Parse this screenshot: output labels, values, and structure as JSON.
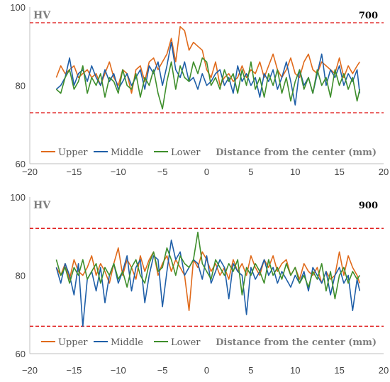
{
  "colors": {
    "upper": "#E06A1B",
    "middle": "#1F5FA8",
    "lower": "#3E8E2B",
    "limit": "#E02020",
    "axis": "#BFBFBF"
  },
  "chart_data": [
    {
      "type": "line",
      "title": "700",
      "ylabel": "HV",
      "xlabel": "Distance from the center (mm)",
      "xlim": [
        -20,
        20
      ],
      "ylim": [
        60,
        100
      ],
      "xticks": [
        "−20",
        "−15",
        "−10",
        "−5",
        "0",
        "5",
        "10",
        "15",
        "20"
      ],
      "yticks": [
        "60",
        "80",
        "100"
      ],
      "limits": [
        96,
        73
      ],
      "legend_position": "bottom-left",
      "series": [
        {
          "name": "Upper",
          "x": [
            -17.0,
            -16.5,
            -16.0,
            -15.5,
            -15.0,
            -14.5,
            -14.0,
            -13.5,
            -13.0,
            -12.5,
            -12.0,
            -11.5,
            -11.0,
            -10.5,
            -10.0,
            -9.5,
            -9.0,
            -8.5,
            -8.0,
            -7.5,
            -7.0,
            -6.5,
            -6.0,
            -5.5,
            -5.0,
            -4.5,
            -4.0,
            -3.5,
            -3.0,
            -2.5,
            -2.0,
            -1.5,
            -1.0,
            -0.5,
            0.0,
            0.5,
            1.0,
            1.5,
            2.0,
            2.5,
            3.0,
            3.5,
            4.0,
            4.5,
            5.0,
            5.5,
            6.0,
            6.5,
            7.0,
            7.5,
            8.0,
            8.5,
            9.0,
            9.5,
            10.0,
            10.5,
            11.0,
            11.5,
            12.0,
            12.5,
            13.0,
            13.5,
            14.0,
            14.5,
            15.0,
            15.5,
            16.0,
            16.5,
            17.0,
            17.3
          ],
          "values": [
            82,
            85,
            83,
            84,
            85,
            82,
            83,
            84,
            82,
            83,
            80,
            83,
            86,
            82,
            80,
            84,
            83,
            78,
            84,
            85,
            81,
            86,
            87,
            84,
            86,
            88,
            92,
            86,
            95,
            94,
            89,
            91,
            90,
            89,
            84,
            82,
            86,
            80,
            82,
            83,
            81,
            82,
            85,
            82,
            84,
            83,
            86,
            82,
            85,
            88,
            84,
            82,
            84,
            87,
            83,
            82,
            86,
            88,
            84,
            83,
            86,
            85,
            84,
            83,
            87,
            82,
            85,
            83,
            85,
            86
          ]
        },
        {
          "name": "Middle",
          "x": [
            -17.0,
            -16.5,
            -16.0,
            -15.5,
            -15.0,
            -14.5,
            -14.0,
            -13.5,
            -13.0,
            -12.5,
            -12.0,
            -11.5,
            -11.0,
            -10.5,
            -10.0,
            -9.5,
            -9.0,
            -8.5,
            -8.0,
            -7.5,
            -7.0,
            -6.5,
            -6.0,
            -5.5,
            -5.0,
            -4.5,
            -4.0,
            -3.5,
            -3.0,
            -2.5,
            -2.0,
            -1.5,
            -1.0,
            -0.5,
            0.0,
            0.5,
            1.0,
            1.5,
            2.0,
            2.5,
            3.0,
            3.5,
            4.0,
            4.5,
            5.0,
            5.5,
            6.0,
            6.5,
            7.0,
            7.5,
            8.0,
            8.5,
            9.0,
            9.5,
            10.0,
            10.5,
            11.0,
            11.5,
            12.0,
            12.5,
            13.0,
            13.5,
            14.0,
            14.5,
            15.0,
            15.5,
            16.0,
            16.5,
            17.0,
            17.3
          ],
          "values": [
            79,
            80,
            82,
            87,
            80,
            83,
            84,
            81,
            85,
            82,
            80,
            84,
            81,
            83,
            79,
            81,
            83,
            80,
            82,
            84,
            79,
            85,
            83,
            86,
            80,
            85,
            91,
            84,
            82,
            86,
            81,
            82,
            79,
            83,
            80,
            81,
            83,
            84,
            80,
            82,
            78,
            85,
            81,
            83,
            80,
            82,
            77,
            83,
            81,
            84,
            79,
            82,
            86,
            81,
            75,
            84,
            80,
            82,
            78,
            83,
            88,
            80,
            84,
            82,
            85,
            80,
            83,
            81,
            84,
            78
          ]
        },
        {
          "name": "Lower",
          "x": [
            -17.0,
            -16.5,
            -16.0,
            -15.5,
            -15.0,
            -14.5,
            -14.0,
            -13.5,
            -13.0,
            -12.5,
            -12.0,
            -11.5,
            -11.0,
            -10.5,
            -10.0,
            -9.5,
            -9.0,
            -8.5,
            -8.0,
            -7.5,
            -7.0,
            -6.5,
            -6.0,
            -5.5,
            -5.0,
            -4.5,
            -4.0,
            -3.5,
            -3.0,
            -2.5,
            -2.0,
            -1.5,
            -1.0,
            -0.5,
            0.0,
            0.5,
            1.0,
            1.5,
            2.0,
            2.5,
            3.0,
            3.5,
            4.0,
            4.5,
            5.0,
            5.5,
            6.0,
            6.5,
            7.0,
            7.5,
            8.0,
            8.5,
            9.0,
            9.5,
            10.0,
            10.5,
            11.0,
            11.5,
            12.0,
            12.5,
            13.0,
            13.5,
            14.0,
            14.5,
            15.0,
            15.5,
            16.0,
            16.5,
            17.0,
            17.3
          ],
          "values": [
            79,
            78,
            82,
            84,
            79,
            81,
            85,
            78,
            82,
            80,
            83,
            77,
            82,
            81,
            78,
            84,
            80,
            79,
            83,
            77,
            82,
            80,
            84,
            78,
            74,
            81,
            86,
            79,
            85,
            82,
            81,
            86,
            83,
            87,
            86,
            80,
            82,
            79,
            84,
            81,
            83,
            78,
            84,
            80,
            86,
            79,
            82,
            77,
            83,
            80,
            84,
            78,
            82,
            76,
            81,
            84,
            79,
            82,
            78,
            84,
            80,
            82,
            77,
            84,
            80,
            83,
            79,
            82,
            76,
            79
          ]
        }
      ]
    },
    {
      "type": "line",
      "title": "900",
      "ylabel": "HV",
      "xlabel": "Distance from the center (mm)",
      "xlim": [
        -20,
        20
      ],
      "ylim": [
        60,
        100
      ],
      "xticks": [
        "−20",
        "−15",
        "−10",
        "−5",
        "0",
        "5",
        "10",
        "15",
        "20"
      ],
      "yticks": [
        "60",
        "80",
        "100"
      ],
      "limits": [
        92,
        67
      ],
      "legend_position": "bottom-left",
      "series": [
        {
          "name": "Upper",
          "x": [
            -17.0,
            -16.5,
            -16.0,
            -15.5,
            -15.0,
            -14.5,
            -14.0,
            -13.5,
            -13.0,
            -12.5,
            -12.0,
            -11.5,
            -11.0,
            -10.5,
            -10.0,
            -9.5,
            -9.0,
            -8.5,
            -8.0,
            -7.5,
            -7.0,
            -6.5,
            -6.0,
            -5.5,
            -5.0,
            -4.5,
            -4.0,
            -3.5,
            -3.0,
            -2.5,
            -2.0,
            -1.5,
            -1.0,
            -0.5,
            0.0,
            0.5,
            1.0,
            1.5,
            2.0,
            2.5,
            3.0,
            3.5,
            4.0,
            4.5,
            5.0,
            5.5,
            6.0,
            6.5,
            7.0,
            7.5,
            8.0,
            8.5,
            9.0,
            9.5,
            10.0,
            10.5,
            11.0,
            11.5,
            12.0,
            12.5,
            13.0,
            13.5,
            14.0,
            14.5,
            15.0,
            15.5,
            16.0,
            16.5,
            17.0,
            17.3
          ],
          "values": [
            82,
            80,
            83,
            79,
            84,
            81,
            80,
            82,
            85,
            80,
            83,
            81,
            78,
            83,
            87,
            80,
            84,
            82,
            79,
            85,
            81,
            84,
            86,
            80,
            83,
            85,
            81,
            84,
            82,
            80,
            71,
            84,
            82,
            86,
            84,
            81,
            83,
            80,
            82,
            79,
            84,
            81,
            83,
            80,
            85,
            82,
            80,
            84,
            82,
            85,
            81,
            83,
            84,
            80,
            82,
            79,
            83,
            81,
            80,
            82,
            78,
            81,
            79,
            80,
            86,
            80,
            85,
            82,
            80,
            78
          ]
        },
        {
          "name": "Middle",
          "x": [
            -17.0,
            -16.5,
            -16.0,
            -15.5,
            -15.0,
            -14.5,
            -14.0,
            -13.5,
            -13.0,
            -12.5,
            -12.0,
            -11.5,
            -11.0,
            -10.5,
            -10.0,
            -9.5,
            -9.0,
            -8.5,
            -8.0,
            -7.5,
            -7.0,
            -6.5,
            -6.0,
            -5.5,
            -5.0,
            -4.5,
            -4.0,
            -3.5,
            -3.0,
            -2.5,
            -2.0,
            -1.5,
            -1.0,
            -0.5,
            0.0,
            0.5,
            1.0,
            1.5,
            2.0,
            2.5,
            3.0,
            3.5,
            4.0,
            4.5,
            5.0,
            5.5,
            6.0,
            6.5,
            7.0,
            7.5,
            8.0,
            8.5,
            9.0,
            9.5,
            10.0,
            10.5,
            11.0,
            11.5,
            12.0,
            12.5,
            13.0,
            13.5,
            14.0,
            14.5,
            15.0,
            15.5,
            16.0,
            16.5,
            17.0,
            17.3
          ],
          "values": [
            82,
            78,
            83,
            80,
            75,
            83,
            67,
            79,
            81,
            76,
            82,
            73,
            80,
            83,
            78,
            81,
            85,
            76,
            82,
            84,
            73,
            80,
            85,
            84,
            72,
            81,
            89,
            84,
            86,
            80,
            82,
            84,
            83,
            79,
            85,
            78,
            81,
            84,
            82,
            74,
            83,
            81,
            80,
            70,
            82,
            79,
            81,
            84,
            80,
            82,
            78,
            81,
            79,
            77,
            80,
            78,
            81,
            76,
            82,
            80,
            78,
            81,
            75,
            80,
            82,
            78,
            80,
            71,
            79,
            76
          ]
        },
        {
          "name": "Lower",
          "x": [
            -17.0,
            -16.5,
            -16.0,
            -15.5,
            -15.0,
            -14.5,
            -14.0,
            -13.5,
            -13.0,
            -12.5,
            -12.0,
            -11.5,
            -11.0,
            -10.5,
            -10.0,
            -9.5,
            -9.0,
            -8.5,
            -8.0,
            -7.5,
            -7.0,
            -6.5,
            -6.0,
            -5.5,
            -5.0,
            -4.5,
            -4.0,
            -3.5,
            -3.0,
            -2.5,
            -2.0,
            -1.5,
            -1.0,
            -0.5,
            0.0,
            0.5,
            1.0,
            1.5,
            2.0,
            2.5,
            3.0,
            3.5,
            4.0,
            4.5,
            5.0,
            5.5,
            6.0,
            6.5,
            7.0,
            7.5,
            8.0,
            8.5,
            9.0,
            9.5,
            10.0,
            10.5,
            11.0,
            11.5,
            12.0,
            12.5,
            13.0,
            13.5,
            14.0,
            14.5,
            15.0,
            15.5,
            16.0,
            16.5,
            17.0,
            17.3
          ],
          "values": [
            84,
            80,
            82,
            78,
            82,
            80,
            84,
            79,
            81,
            83,
            78,
            82,
            80,
            83,
            79,
            81,
            77,
            82,
            84,
            80,
            78,
            83,
            86,
            81,
            82,
            87,
            84,
            80,
            85,
            83,
            82,
            84,
            91,
            83,
            81,
            79,
            84,
            82,
            80,
            83,
            81,
            84,
            75,
            82,
            80,
            83,
            81,
            78,
            84,
            80,
            82,
            79,
            83,
            80,
            82,
            78,
            80,
            77,
            81,
            79,
            83,
            76,
            81,
            74,
            80,
            82,
            78,
            81,
            79,
            80
          ]
        }
      ]
    }
  ]
}
